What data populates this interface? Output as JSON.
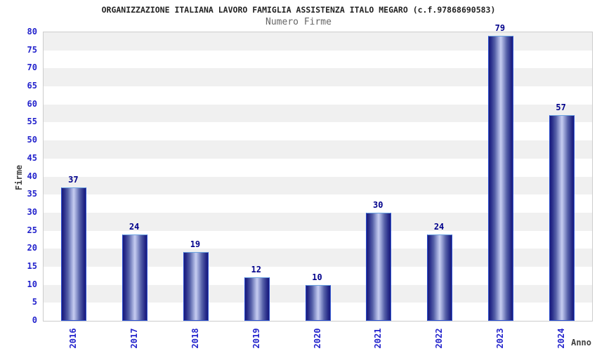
{
  "chart_data": {
    "type": "bar",
    "title": "ORGANIZZAZIONE ITALIANA LAVORO FAMIGLIA ASSISTENZA ITALO MEGARO (c.f.97868690583)",
    "subtitle": "Numero Firme",
    "xlabel": "Anno",
    "ylabel": "Firme",
    "categories": [
      "2016",
      "2017",
      "2018",
      "2019",
      "2020",
      "2021",
      "2022",
      "2023",
      "2024"
    ],
    "values": [
      37,
      24,
      19,
      12,
      10,
      30,
      24,
      79,
      57
    ],
    "ylim": [
      0,
      80
    ],
    "ytick_step": 5,
    "yticks": [
      0,
      5,
      10,
      15,
      20,
      25,
      30,
      35,
      40,
      45,
      50,
      55,
      60,
      65,
      70,
      75,
      80
    ],
    "legend": "none",
    "grid": "alternating horizontal bands every 5 units",
    "colors": {
      "bar_dark": "#1a1a7c",
      "bar_mid": "#5560a8",
      "bar_light": "#c6cdf1",
      "bar_border_side": "#2d51cf",
      "bar_border_top": "#6aa2e0",
      "tick_label": "#2222cc",
      "value_label": "#00008b",
      "band_gray": "#f0f0f0",
      "band_white": "#ffffff",
      "plot_border": "#cccccc",
      "title_color": "#222222",
      "subtitle_color": "#666666",
      "axis_title_color": "#404040"
    }
  }
}
